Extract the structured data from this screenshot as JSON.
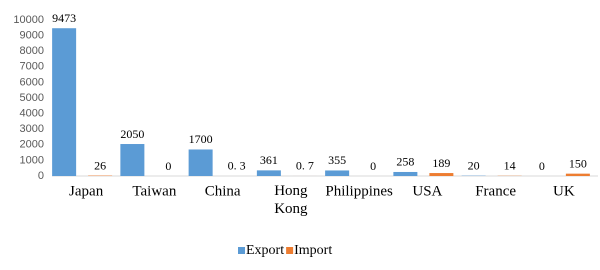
{
  "chart_data": {
    "type": "bar",
    "categories": [
      "Japan",
      "Taiwan",
      "China",
      "Hong Kong",
      "Philippines",
      "USA",
      "France",
      "UK"
    ],
    "series": [
      {
        "name": "Export",
        "color": "#5b9bd5",
        "values": [
          9473,
          2050,
          1700,
          361,
          355,
          258,
          20,
          0
        ]
      },
      {
        "name": "Import",
        "color": "#ed7d31",
        "values": [
          26,
          0,
          0.3,
          0.7,
          0,
          189,
          14,
          150
        ],
        "value_labels": [
          "26",
          "0",
          "0. 3",
          "0. 7",
          "0",
          "189",
          "14",
          "150"
        ]
      }
    ],
    "ylim": [
      0,
      10000
    ],
    "yticks": [
      0,
      1000,
      2000,
      3000,
      4000,
      5000,
      6000,
      7000,
      8000,
      9000,
      10000
    ],
    "grid": false,
    "legend": "bottom"
  }
}
